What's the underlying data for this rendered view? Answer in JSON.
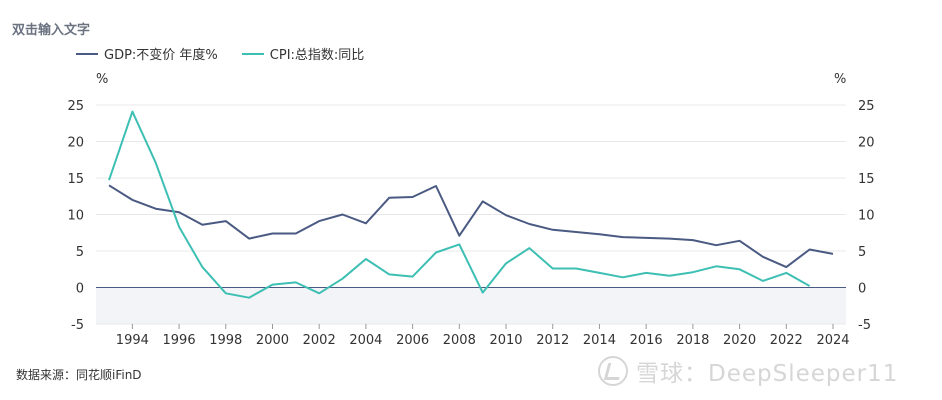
{
  "header": {
    "title": "双击输入文字"
  },
  "footer": {
    "source": "数据来源：同花顺iFinD"
  },
  "watermark": {
    "text": "雪球：DeepSleeper11"
  },
  "chart_data": {
    "type": "line",
    "x": [
      1993,
      1994,
      1995,
      1996,
      1997,
      1998,
      1999,
      2000,
      2001,
      2002,
      2003,
      2004,
      2005,
      2006,
      2007,
      2008,
      2009,
      2010,
      2011,
      2012,
      2013,
      2014,
      2015,
      2016,
      2017,
      2018,
      2019,
      2020,
      2021,
      2022,
      2023,
      2024
    ],
    "x_ticks": [
      "1994",
      "1996",
      "1998",
      "2000",
      "2002",
      "2004",
      "2006",
      "2008",
      "2010",
      "2012",
      "2014",
      "2016",
      "2018",
      "2020",
      "2022",
      "2024"
    ],
    "y_left_unit": "%",
    "y_right_unit": "%",
    "ylim": [
      -5,
      25
    ],
    "y_ticks": [
      "25",
      "20",
      "15",
      "10",
      "5",
      "0",
      "-5"
    ],
    "grid": true,
    "legend": "top-left",
    "series": [
      {
        "name": "GDP:不变价 年度%",
        "color": "#4a5a82",
        "values": [
          14.0,
          12.0,
          10.8,
          10.3,
          8.6,
          9.1,
          6.7,
          7.4,
          7.4,
          9.1,
          10.0,
          8.8,
          12.3,
          12.4,
          13.9,
          7.1,
          11.8,
          9.9,
          8.7,
          7.9,
          7.6,
          7.3,
          6.9,
          6.8,
          6.7,
          6.5,
          5.8,
          6.4,
          4.2,
          2.8,
          5.2,
          4.6
        ]
      },
      {
        "name": "CPI:总指数:同比",
        "color": "#3dbfb3",
        "values": [
          14.7,
          24.1,
          17.1,
          8.3,
          2.8,
          -0.8,
          -1.4,
          0.4,
          0.7,
          -0.8,
          1.2,
          3.9,
          1.8,
          1.5,
          4.8,
          5.9,
          -0.7,
          3.3,
          5.4,
          2.6,
          2.6,
          2.0,
          1.4,
          2.0,
          1.6,
          2.1,
          2.9,
          2.5,
          0.9,
          2.0,
          0.2,
          null
        ]
      }
    ]
  }
}
